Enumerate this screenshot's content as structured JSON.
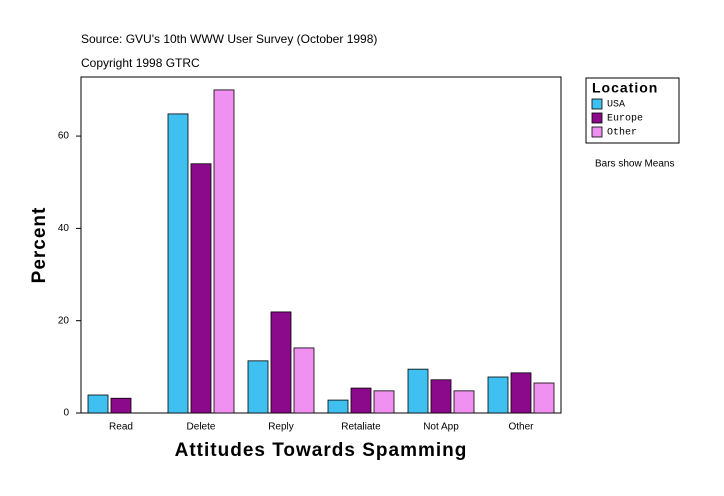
{
  "chart_data": {
    "type": "bar",
    "annotations": [
      "Source: GVU's 10th WWW User Survey (October 1998)",
      "Copyright 1998 GTRC",
      "Bars show Means"
    ],
    "xlabel": "Attitudes Towards Spamming",
    "ylabel": "Percent",
    "legend_title": "Location",
    "legend_position": "right",
    "categories": [
      "Read",
      "Delete",
      "Reply",
      "Retaliate",
      "Not App",
      "Other"
    ],
    "series": [
      {
        "name": "USA",
        "color": "#40c0f0",
        "values": [
          3.9,
          64.8,
          11.3,
          2.8,
          9.5,
          7.8
        ]
      },
      {
        "name": "Europe",
        "color": "#8b0a8b",
        "values": [
          3.2,
          54,
          21.9,
          5.4,
          7.2,
          8.7
        ]
      },
      {
        "name": "Other",
        "color": "#f090f0",
        "values": [
          null,
          70,
          14.1,
          4.8,
          4.8,
          6.5
        ]
      }
    ],
    "ylim": [
      0,
      72.8
    ],
    "yticks": [
      0,
      20,
      40,
      60
    ],
    "grid": false
  }
}
